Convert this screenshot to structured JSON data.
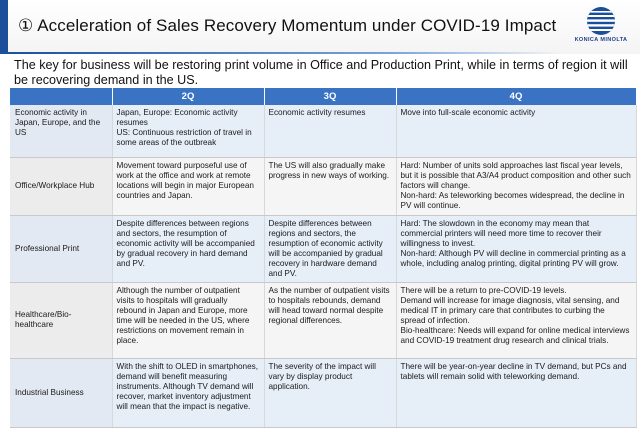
{
  "header": {
    "title": "① Acceleration of Sales Recovery Momentum under COVID-19 Impact",
    "logo_text": "KONICA MINOLTA",
    "brand_color": "#1b4f9c"
  },
  "subtitle": "The key for business will be restoring print volume in Office and Production Print, while in terms of region it will be recovering demand in the US.",
  "table": {
    "columns": [
      "",
      "2Q",
      "3Q",
      "4Q"
    ],
    "rows": [
      {
        "label": "Economic activity in Japan, Europe, and the US",
        "q2": "Japan, Europe: Economic activity resumes\nUS: Continuous restriction of travel in some  areas of the outbreak",
        "q3": "Economic activity resumes",
        "q4": "Move into full-scale economic activity"
      },
      {
        "label": "Office/Workplace Hub",
        "q2": "Movement toward purposeful use of work at the office and work at remote locations will begin in major European countries and Japan.",
        "q3": "The US will also gradually make progress in new ways of working.",
        "q4": "Hard: Number of units sold approaches last fiscal year levels, but it is possible that A3/A4 product composition and other such factors will change.\nNon-hard: As teleworking becomes widespread, the decline in PV will continue."
      },
      {
        "label": "Professional Print",
        "q2": "Despite differences between regions and sectors, the resumption of economic activity will be accompanied by gradual recovery in hard demand and PV.",
        "q3": "Despite differences between regions and sectors, the resumption of economic activity will be accompanied by gradual recovery in hardware demand and PV.",
        "q4": "Hard: The slowdown in the economy may mean that commercial printers will need more time to recover their willingness to invest.\nNon-hard: Although PV will decline in commercial printing as a whole, including analog printing, digital printing PV will grow."
      },
      {
        "label": "Healthcare/Bio-healthcare",
        "q2": "Although the number of outpatient visits to hospitals will gradually rebound in Japan and Europe, more time will be needed in the US, where restrictions on movement remain in place.",
        "q3": "As the number of outpatient visits to hospitals rebounds, demand will head toward normal despite regional differences.",
        "q4": "There will be a return to pre-COVID-19 levels.\nDemand will increase for image diagnosis, vital sensing, and medical IT in primary care that contributes to curbing the spread of infection.\nBio-healthcare: Needs will expand for online medical interviews and COVID-19 treatment drug research and clinical trials."
      },
      {
        "label": "Industrial Business",
        "q2": "With the shift to OLED in smartphones, demand will benefit measuring instruments. Although TV demand will recover, market inventory adjustment will mean that the impact is negative.",
        "q3": "The severity of the impact will vary by display product application.",
        "q4": "There will be year-on-year decline in TV demand, but PCs and tablets will remain solid with teleworking demand."
      }
    ]
  }
}
